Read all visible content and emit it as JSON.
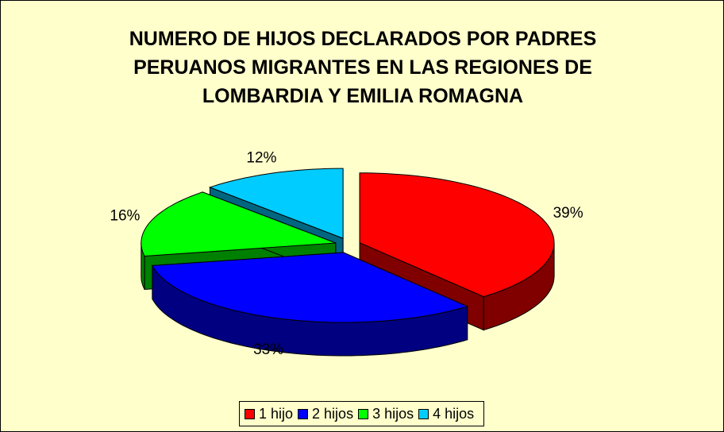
{
  "chart_data": {
    "type": "pie",
    "title": "NUMERO DE HIJOS DECLARADOS  POR PADRES PERUANOS MIGRANTES EN LAS REGIONES DE LOMBARDIA Y EMILIA ROMAGNA",
    "categories": [
      "1 hijo",
      "2 hijos",
      "3 hijos",
      "4 hijos"
    ],
    "values": [
      39,
      33,
      16,
      12
    ],
    "value_labels": [
      "39%",
      "33%",
      "16%",
      "12%"
    ],
    "colors": [
      "#ff0000",
      "#0000ff",
      "#00ff00",
      "#00ccff"
    ],
    "legend": "bottom"
  }
}
